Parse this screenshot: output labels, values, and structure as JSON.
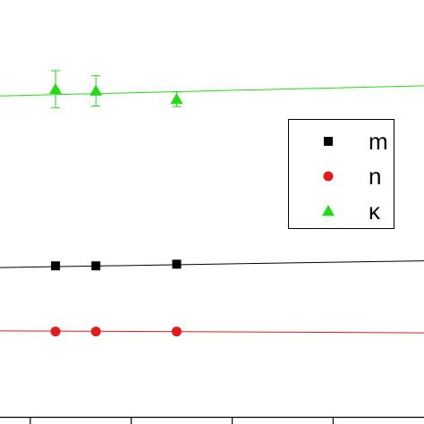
{
  "chart_data": {
    "type": "scatter",
    "title": "",
    "xlabel": "",
    "ylabel": "",
    "xlim": [
      -0.3,
      3.9
    ],
    "ylim": [
      0,
      12.4
    ],
    "grid": false,
    "legend_position": "right",
    "series": [
      {
        "name": "m",
        "color": "#000000",
        "marker": "square",
        "x": [
          0.25,
          0.65,
          1.45
        ],
        "y": [
          4.5,
          4.5,
          4.55
        ],
        "fit": {
          "x": [
            -0.3,
            3.9
          ],
          "y": [
            4.45,
            4.65
          ]
        }
      },
      {
        "name": "n",
        "color": "#e41a1c",
        "marker": "circle",
        "x": [
          0.25,
          0.65,
          1.45
        ],
        "y": [
          2.55,
          2.55,
          2.55
        ],
        "fit": {
          "x": [
            -0.3,
            3.9
          ],
          "y": [
            2.57,
            2.51
          ]
        }
      },
      {
        "name": "κ",
        "color": "#22dd11",
        "marker": "triangle",
        "x": [
          0.25,
          0.65,
          1.45
        ],
        "y": [
          9.75,
          9.7,
          9.45
        ],
        "yerr": [
          0.55,
          0.45,
          0.22
        ],
        "fit": {
          "x": [
            -0.3,
            3.9
          ],
          "y": [
            9.55,
            9.85
          ]
        }
      }
    ],
    "x_ticks": [
      0.0,
      1.0,
      2.0,
      3.0
    ]
  },
  "icons": {
    "square": "square-marker-icon",
    "circle": "circle-marker-icon",
    "triangle": "triangle-marker-icon"
  }
}
